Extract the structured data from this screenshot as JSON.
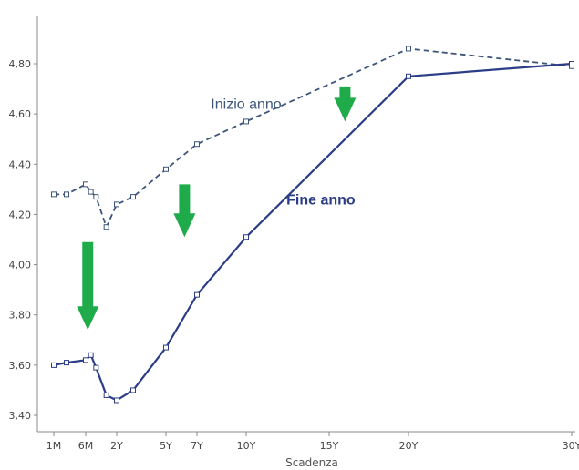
{
  "chart_data": {
    "type": "line",
    "xlabel": "Scadenza",
    "ylabel": "",
    "ylim": [
      3.35,
      4.95
    ],
    "yticks": [
      "3,40",
      "3,60",
      "3,80",
      "4,00",
      "4,20",
      "4,40",
      "4,60",
      "4,80"
    ],
    "xticks": [
      {
        "label": "1M",
        "x": 0.083
      },
      {
        "label": "6M",
        "x": 0.5
      },
      {
        "label": "2Y",
        "x": 2
      },
      {
        "label": "5Y",
        "x": 5
      },
      {
        "label": "7Y",
        "x": 7
      },
      {
        "label": "10Y",
        "x": 10
      },
      {
        "label": "15Y",
        "x": 15
      },
      {
        "label": "20Y",
        "x": 20
      },
      {
        "label": "30Y",
        "x": 30
      }
    ],
    "series": [
      {
        "name": "Inizio anno",
        "style": "dashed",
        "color": "#3d5578",
        "points": [
          [
            0.083,
            4.28
          ],
          [
            0.25,
            4.28
          ],
          [
            0.5,
            4.32
          ],
          [
            0.75,
            4.29
          ],
          [
            1,
            4.27
          ],
          [
            1.5,
            4.15
          ],
          [
            2,
            4.24
          ],
          [
            3,
            4.27
          ],
          [
            5,
            4.38
          ],
          [
            7,
            4.48
          ],
          [
            10,
            4.57
          ],
          [
            20,
            4.86
          ],
          [
            30,
            4.79
          ]
        ]
      },
      {
        "name": "Fine anno",
        "style": "solid",
        "color": "#2b3d86",
        "points": [
          [
            0.083,
            3.6
          ],
          [
            0.25,
            3.61
          ],
          [
            0.5,
            3.62
          ],
          [
            0.75,
            3.64
          ],
          [
            1,
            3.59
          ],
          [
            1.5,
            3.48
          ],
          [
            2,
            3.46
          ],
          [
            3,
            3.5
          ],
          [
            5,
            3.67
          ],
          [
            7,
            3.88
          ],
          [
            10,
            4.11
          ],
          [
            20,
            4.75
          ],
          [
            30,
            4.8
          ]
        ]
      }
    ],
    "annotations": [
      {
        "text": "Inizio anno",
        "x": 10,
        "y": 4.62,
        "series": 0
      },
      {
        "text": "Fine anno",
        "x": 14.5,
        "y": 4.24,
        "series": 1
      }
    ],
    "arrows": [
      {
        "x": 0.6,
        "y_from": 4.09,
        "y_to": 3.74,
        "color": "#1fab4a"
      },
      {
        "x": 6.2,
        "y_from": 4.32,
        "y_to": 4.11,
        "color": "#1fab4a"
      },
      {
        "x": 16,
        "y_from": 4.71,
        "y_to": 4.57,
        "color": "#1fab4a"
      }
    ]
  }
}
